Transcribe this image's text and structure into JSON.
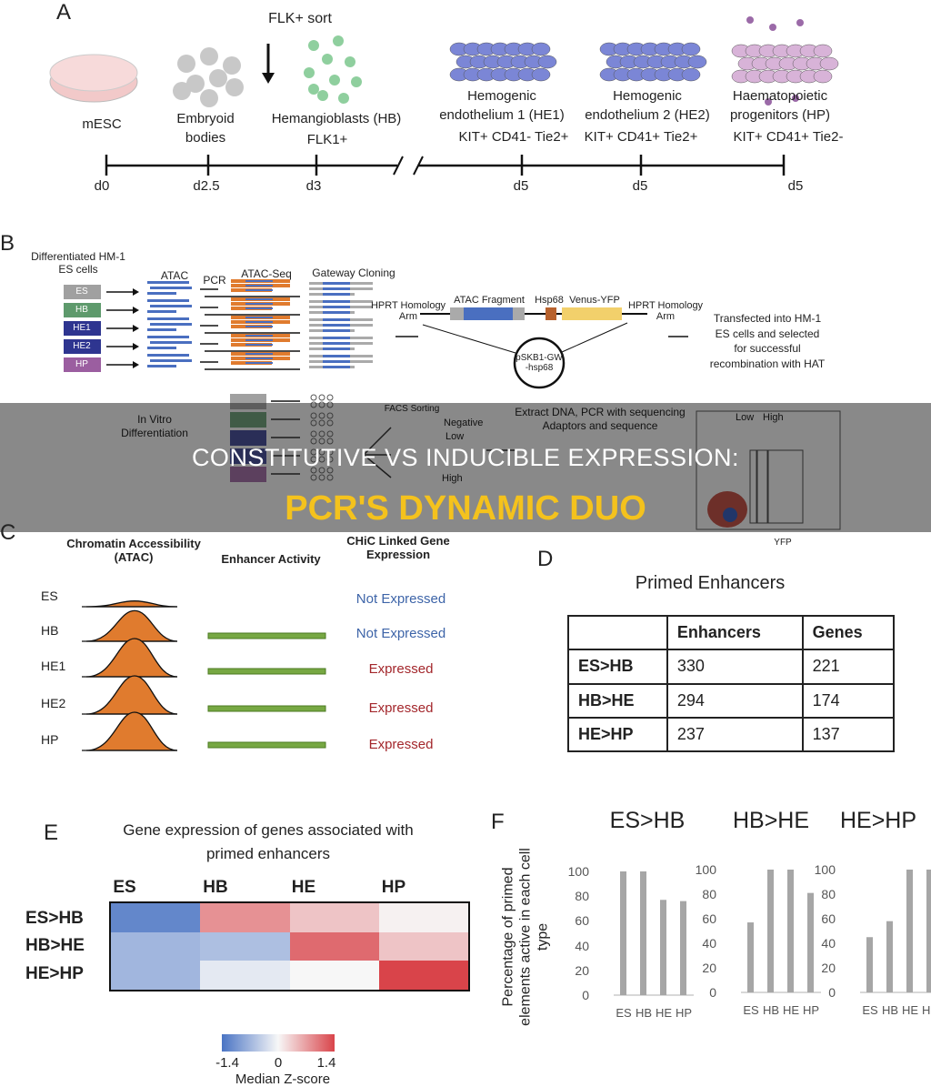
{
  "overlay": {
    "line1": "CONSTITUTIVE VS INDUCIBLE EXPRESSION:",
    "line2": "PCR'S DYNAMIC DUO",
    "title_color": "#f4c21d"
  },
  "panelA": {
    "label": "A",
    "sort_label": "FLK+ sort",
    "stages": [
      {
        "name": "mESC",
        "marker": "",
        "day": "d0"
      },
      {
        "name": "Embryoid bodies",
        "marker": "",
        "day": "d2.5"
      },
      {
        "name": "Hemangioblasts (HB)",
        "marker": "FLK1+",
        "day": "d3"
      },
      {
        "name": "Hemogenic endothelium 1 (HE1)",
        "marker": "KIT+ CD41- Tie2+",
        "day": "d5"
      },
      {
        "name": "Hemogenic endothelium 2 (HE2)",
        "marker": "KIT+ CD41+ Tie2+",
        "day": "d5"
      },
      {
        "name": "Haematopoietic progenitors (HP)",
        "marker": "KIT+ CD41+ Tie2-",
        "day": "d5"
      }
    ]
  },
  "panelB": {
    "label": "B",
    "diff_label": "Differentiated HM-1 ES cells",
    "atac": "ATAC",
    "pcr": "PCR",
    "atac_seq": "ATAC-Seq",
    "gateway": "Gateway Cloning",
    "cells": [
      {
        "name": "ES",
        "color": "#a0a0a0"
      },
      {
        "name": "HB",
        "color": "#5e9a6c"
      },
      {
        "name": "HE1",
        "color": "#2e3590"
      },
      {
        "name": "HE2",
        "color": "#2e3590"
      },
      {
        "name": "HP",
        "color": "#9b5ea0"
      }
    ],
    "hprt_left": "HPRT Homology Arm",
    "atac_fragment": "ATAC Fragment",
    "hsp68": "Hsp68",
    "venus": "Venus-YFP",
    "hprt_right": "HPRT Homology Arm",
    "plasmid": "pSKB1-GW -hsp68",
    "transfected": "Transfected into HM-1 ES cells and selected for successful recombination with HAT",
    "in_vitro": "In Vitro Differentiation",
    "facs": "FACS Sorting",
    "negative": "Negative",
    "low": "Low",
    "high": "High",
    "extract": "Extract DNA, PCR with sequencing Adaptors and sequence",
    "facs_low": "Low",
    "facs_high": "High",
    "facs_axis": "YFP"
  },
  "panelC": {
    "label": "C",
    "col1": "Chromatin Accessibility (ATAC)",
    "col2": "Enhancer Activity",
    "col3": "CHiC Linked Gene Expression",
    "rows": [
      {
        "cell": "ES",
        "atac": 0.15,
        "enhancer": false,
        "expression": "Not Expressed"
      },
      {
        "cell": "HB",
        "atac": 0.8,
        "enhancer": true,
        "expression": "Not Expressed"
      },
      {
        "cell": "HE1",
        "atac": 1,
        "enhancer": true,
        "expression": "Expressed"
      },
      {
        "cell": "HE2",
        "atac": 1,
        "enhancer": true,
        "expression": "Expressed"
      },
      {
        "cell": "HP",
        "atac": 1,
        "enhancer": true,
        "expression": "Expressed"
      }
    ],
    "colors": {
      "not_expressed": "#3d64a8",
      "expressed": "#a3262b",
      "atac": "#e07b2e",
      "enhancer": "#77a843"
    }
  },
  "panelD": {
    "label": "D",
    "title": "Primed Enhancers",
    "headers": [
      "",
      "Enhancers",
      "Genes"
    ],
    "rows": [
      [
        "ES>HB",
        "330",
        "221"
      ],
      [
        "HB>HE",
        "294",
        "174"
      ],
      [
        "HE>HP",
        "237",
        "137"
      ]
    ]
  },
  "panelE": {
    "label": "E",
    "title": "Gene expression of genes associated with primed enhancers",
    "columns": [
      "ES",
      "HB",
      "HE",
      "HP"
    ],
    "rows": [
      "ES>HB",
      "HB>HE",
      "HE>HP"
    ],
    "chart_data": {
      "type": "heatmap",
      "x": [
        "ES",
        "HB",
        "HE",
        "HP"
      ],
      "y": [
        "ES>HB",
        "HB>HE",
        "HE>HP"
      ],
      "values": [
        [
          -1.2,
          0.8,
          0.4,
          0.05
        ],
        [
          -0.7,
          -0.6,
          1.1,
          0.4
        ],
        [
          -0.7,
          -0.15,
          0.0,
          1.4
        ]
      ],
      "colorbar": {
        "min": -1.4,
        "max": 1.4,
        "ticks": [
          "-1.4",
          "0",
          "1.4"
        ],
        "label": "Median Z-score",
        "low_color": "#4a74c4",
        "mid_color": "#f7f7f7",
        "high_color": "#d9444a"
      }
    }
  },
  "panelF": {
    "label": "F",
    "ylabel": "Percentage of primed elements active in each cell type",
    "chart_data": [
      {
        "type": "bar",
        "title": "ES>HB",
        "categories": [
          "ES",
          "HB",
          "HE",
          "HP"
        ],
        "values": [
          100,
          100,
          77,
          76
        ],
        "ylim": [
          0,
          100
        ],
        "yticks": [
          "0",
          "20",
          "40",
          "60",
          "80",
          "100"
        ]
      },
      {
        "type": "bar",
        "title": "HB>HE",
        "categories": [
          "ES",
          "HB",
          "HE",
          "HP"
        ],
        "values": [
          57,
          100,
          100,
          81
        ],
        "ylim": [
          0,
          100
        ],
        "yticks": [
          "0",
          "20",
          "40",
          "60",
          "80",
          "100"
        ]
      },
      {
        "type": "bar",
        "title": "HE>HP",
        "categories": [
          "ES",
          "HB",
          "HE",
          "HP"
        ],
        "values": [
          45,
          58,
          100,
          100
        ],
        "ylim": [
          0,
          100
        ],
        "yticks": [
          "0",
          "20",
          "40",
          "60",
          "80",
          "100"
        ]
      }
    ],
    "bar_color": "#a6a6a6"
  }
}
